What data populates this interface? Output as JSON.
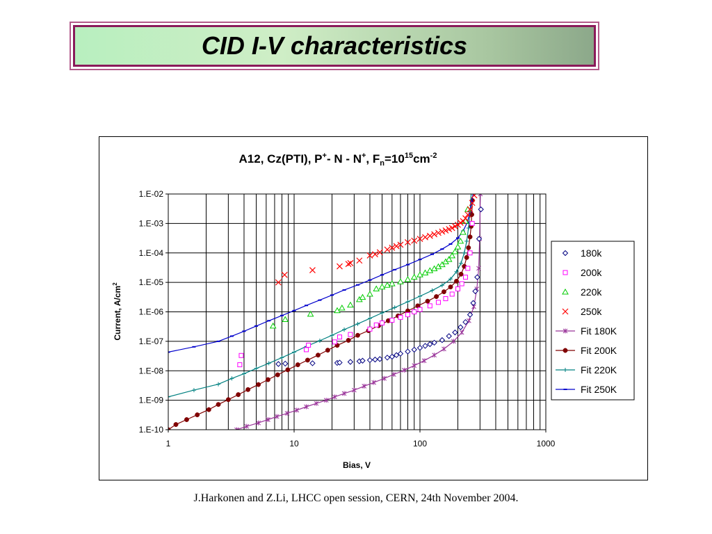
{
  "slide": {
    "title": "CID I-V characteristics",
    "footer": "J.Harkonen and Z.Li, LHCC open session, CERN, 24th November 2004."
  },
  "chart_data": {
    "type": "scatter",
    "title": {
      "main": "A12, Cz(PTI), P",
      "sup1": "+",
      "mid1": "- N - N",
      "sup2": "+",
      "mid2": ", F",
      "sub": "n",
      "mid3": "=10",
      "sup3": "15",
      "mid4": "cm",
      "sup4": "-2"
    },
    "xlabel": "Bias, V",
    "ylabel": "Current, A/cm",
    "ylabel_sup": "2",
    "x_scale": "log",
    "y_scale": "log",
    "xlim": [
      1,
      1000
    ],
    "ylim": [
      1e-10,
      0.01
    ],
    "x_ticks": [
      "1",
      "10",
      "100",
      "1000"
    ],
    "y_ticks": [
      "1.E-10",
      "1.E-09",
      "1.E-08",
      "1.E-07",
      "1.E-06",
      "1.E-05",
      "1.E-04",
      "1.E-03",
      "1.E-02"
    ],
    "grid": true,
    "legend_position": "right",
    "series": [
      {
        "name": "180k",
        "kind": "markers",
        "marker": "diamond",
        "color": "#000080",
        "x": [
          7.5,
          8.5,
          14,
          22,
          23,
          28,
          33,
          35,
          40,
          44,
          48,
          55,
          60,
          65,
          70,
          80,
          90,
          100,
          110,
          120,
          130,
          150,
          170,
          190,
          210,
          230,
          250,
          265,
          275,
          285,
          295,
          305
        ],
        "y": [
          1.7e-08,
          1.75e-08,
          1.8e-08,
          1.85e-08,
          1.9e-08,
          2e-08,
          2.1e-08,
          2.2e-08,
          2.3e-08,
          2.4e-08,
          2.5e-08,
          2.8e-08,
          3e-08,
          3.4e-08,
          3.8e-08,
          4.5e-08,
          5.2e-08,
          6e-08,
          7e-08,
          8e-08,
          9e-08,
          1.1e-07,
          1.5e-07,
          2e-07,
          3e-07,
          4.5e-07,
          8e-07,
          2e-06,
          5e-06,
          1.5e-05,
          0.0003,
          0.003
        ]
      },
      {
        "name": "200k",
        "kind": "markers",
        "marker": "square",
        "color": "#ff00ff",
        "x": [
          3.7,
          3.8,
          12.5,
          13,
          21,
          23,
          28,
          40,
          45,
          50,
          60,
          70,
          80,
          90,
          100,
          120,
          140,
          160,
          180,
          200,
          215,
          230,
          240,
          250,
          260
        ],
        "y": [
          1.6e-08,
          3.3e-08,
          5.2e-08,
          7.4e-08,
          9.5e-08,
          1.4e-07,
          1.7e-07,
          2.6e-07,
          3.6e-07,
          4.2e-07,
          5.2e-07,
          6.5e-07,
          8e-07,
          1e-06,
          1.2e-06,
          1.6e-06,
          2.1e-06,
          2.8e-06,
          4e-06,
          6e-06,
          9e-06,
          1.5e-05,
          3e-05,
          0.0001,
          0.001
        ]
      },
      {
        "name": "220k",
        "kind": "markers",
        "marker": "triangle",
        "color": "#00cc00",
        "x": [
          6.8,
          8.5,
          13.5,
          22,
          24,
          28,
          33,
          35,
          40,
          45,
          50,
          55,
          60,
          70,
          80,
          90,
          100,
          110,
          120,
          130,
          140,
          150,
          160,
          170,
          180,
          190,
          200,
          210,
          220,
          230,
          240
        ],
        "y": [
          3.3e-07,
          5.5e-07,
          8.3e-07,
          1.1e-06,
          1.35e-06,
          1.7e-06,
          2.6e-06,
          3.1e-06,
          4e-06,
          6e-06,
          7e-06,
          8e-06,
          9e-06,
          1.05e-05,
          1.25e-05,
          1.5e-05,
          1.8e-05,
          2.1e-05,
          2.5e-05,
          2.9e-05,
          3.4e-05,
          4e-05,
          5e-05,
          6e-05,
          8e-05,
          0.00011,
          0.00016,
          0.00025,
          0.0005,
          0.0012,
          0.003
        ]
      },
      {
        "name": "250k",
        "kind": "markers",
        "marker": "cross",
        "color": "#ff0000",
        "x": [
          7.5,
          8.4,
          14,
          23,
          27,
          28,
          33,
          40,
          44,
          48,
          55,
          60,
          65,
          70,
          80,
          90,
          100,
          110,
          120,
          130,
          140,
          150,
          160,
          170,
          180,
          190,
          200,
          210,
          220,
          230,
          240,
          250,
          260,
          270
        ],
        "y": [
          1e-05,
          1.8e-05,
          2.6e-05,
          3.5e-05,
          4.2e-05,
          4.5e-05,
          5.5e-05,
          8.2e-05,
          9e-05,
          0.000105,
          0.00013,
          0.00015,
          0.00017,
          0.00019,
          0.00023,
          0.00026,
          0.0003,
          0.00034,
          0.00038,
          0.00043,
          0.00048,
          0.00053,
          0.00058,
          0.00064,
          0.0007,
          0.0008,
          0.0009,
          0.00105,
          0.0012,
          0.0015,
          0.002,
          0.003,
          0.005,
          0.009
        ]
      },
      {
        "name": "Fit 180K",
        "kind": "fit",
        "marker": "star",
        "color": "#993399",
        "x": [
          3.5,
          4.2,
          5.2,
          6.2,
          7.3,
          8.8,
          10.5,
          12.5,
          15,
          18,
          21,
          25,
          30,
          36,
          43,
          52,
          62,
          75,
          90,
          108,
          130,
          155,
          185,
          215,
          245,
          268,
          283,
          293,
          298,
          302
        ],
        "y": [
          1e-10,
          1.3e-10,
          1.7e-10,
          2.2e-10,
          2.8e-10,
          3.6e-10,
          4.6e-10,
          6e-10,
          7.8e-10,
          1e-09,
          1.3e-09,
          1.7e-09,
          2.2e-09,
          3e-09,
          4e-09,
          5.5e-09,
          7.5e-09,
          1.05e-08,
          1.5e-08,
          2.2e-08,
          3.4e-08,
          5.5e-08,
          1e-07,
          2e-07,
          5e-07,
          1.5e-06,
          6e-06,
          3e-05,
          0.0003,
          0.01
        ]
      },
      {
        "name": "Fit 200K",
        "kind": "fit",
        "marker": "circle",
        "color": "#800000",
        "x": [
          1,
          1.15,
          1.4,
          1.7,
          2.1,
          2.5,
          3,
          3.6,
          4.3,
          5.2,
          6.2,
          7.4,
          8.9,
          10.7,
          12.8,
          15.5,
          18.5,
          22,
          27,
          32,
          39,
          47,
          56,
          67,
          80,
          96,
          115,
          135,
          155,
          175,
          195,
          212,
          225,
          235,
          243,
          250,
          255,
          258,
          261
        ],
        "y": [
          1e-10,
          1.5e-10,
          2.2e-10,
          3.2e-10,
          4.8e-10,
          7.2e-10,
          1.05e-09,
          1.55e-09,
          2.3e-09,
          3.4e-09,
          5e-09,
          7.3e-09,
          1.08e-08,
          1.6e-08,
          2.3e-08,
          3.4e-08,
          5e-08,
          7.3e-08,
          1.08e-07,
          1.6e-07,
          2.3e-07,
          3.4e-07,
          5e-07,
          7.3e-07,
          1.08e-06,
          1.6e-06,
          2.3e-06,
          3.3e-06,
          4.8e-06,
          7e-06,
          1.1e-05,
          1.9e-05,
          3.5e-05,
          7e-05,
          0.00015,
          0.00035,
          0.0008,
          0.002,
          0.006
        ]
      },
      {
        "name": "Fit 220K",
        "kind": "fit",
        "marker": "plus",
        "color": "#008080",
        "x": [
          1,
          1.6,
          2.5,
          3.2,
          4,
          5,
          6.3,
          8,
          10,
          12.5,
          16,
          20,
          25,
          32,
          40,
          50,
          63,
          80,
          100,
          125,
          150,
          175,
          195,
          212,
          225,
          235,
          243,
          250,
          255
        ],
        "y": [
          1.3e-09,
          2.2e-09,
          3.5e-09,
          5.5e-09,
          8e-09,
          1.2e-08,
          1.8e-08,
          2.8e-08,
          4.3e-08,
          6.7e-08,
          1.05e-07,
          1.6e-07,
          2.5e-07,
          3.9e-07,
          6e-07,
          9.2e-07,
          1.4e-06,
          2.2e-06,
          3.4e-06,
          5.3e-06,
          8e-06,
          1.3e-05,
          2.3e-05,
          4.5e-05,
          0.0001,
          0.00025,
          0.0007,
          0.0025,
          0.01
        ]
      },
      {
        "name": "Fit 250K",
        "kind": "fit",
        "marker": "dash",
        "color": "#0000cc",
        "x": [
          1,
          1.6,
          2.5,
          3.2,
          4,
          5,
          6.3,
          8,
          10,
          12.5,
          16,
          20,
          25,
          32,
          40,
          50,
          63,
          80,
          100,
          125,
          150,
          175,
          200,
          220,
          238,
          250,
          258,
          265
        ],
        "y": [
          4.3e-08,
          6.5e-08,
          1e-07,
          1.5e-07,
          2.2e-07,
          3.3e-07,
          5e-07,
          7.5e-07,
          1.1e-06,
          1.65e-06,
          2.5e-06,
          3.7e-06,
          5.5e-06,
          8.2e-06,
          1.2e-05,
          1.8e-05,
          2.7e-05,
          4e-05,
          6e-05,
          9e-05,
          0.000135,
          0.0002,
          0.00032,
          0.00055,
          0.0011,
          0.0025,
          0.0055,
          0.011
        ]
      }
    ]
  }
}
